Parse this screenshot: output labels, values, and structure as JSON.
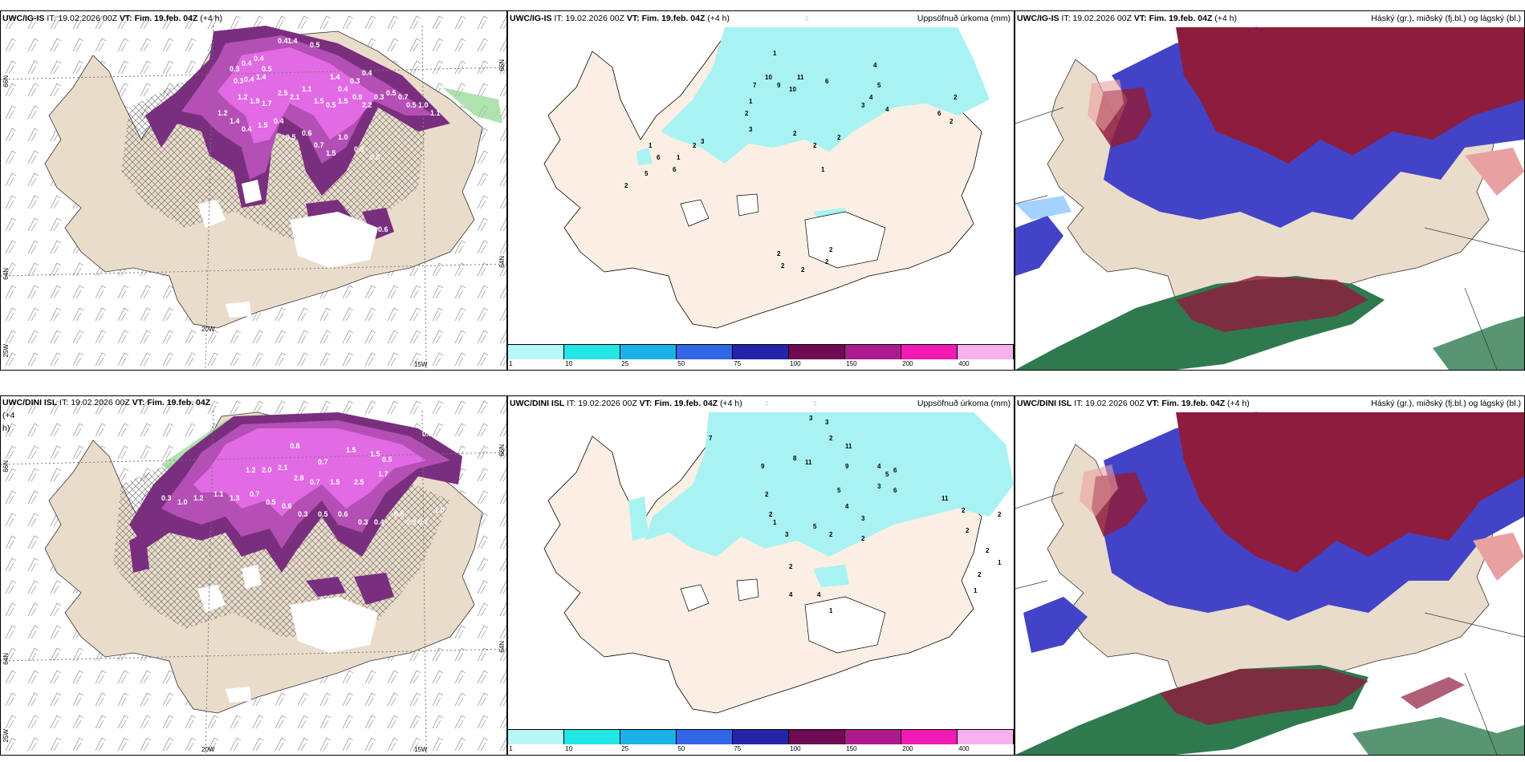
{
  "colors": {
    "land": "#eadccb",
    "land_pale": "#fbefe4",
    "sea": "#ffffff",
    "precip_dark": "#7a2f7e",
    "precip_mid": "#b44fb5",
    "precip_light": "#e26ae4",
    "precip_pink": "#f58af3",
    "accum_cyan": "#a8f2f2",
    "cloud_high": "#8e1c3c",
    "cloud_mid": "#4343c8",
    "cloud_low": "#2e7a4e",
    "cloud_pink": "#e8a0a0",
    "green_frame": "#8fd68f"
  },
  "panels": {
    "top_left": {
      "model": "UWC/IG-IS",
      "it_label": "IT:",
      "it_value": "19.02.2026 00Z",
      "vt_label": "VT:",
      "vt_value": "Fim. 19.feb. 04Z",
      "lead": "(+4 h)",
      "lat_66": "66N",
      "lat_64": "64N",
      "lon_25": "25W",
      "lon_15": "15W",
      "lon_20": "20W",
      "lat_66r": "66N",
      "lat_64r": "64N",
      "values": [
        "0.4",
        "1.4",
        "0.5",
        "0.3",
        "0.4",
        "0.4",
        "0.5",
        "0.3",
        "0.4",
        "1.4",
        "1.4",
        "0.4",
        "0.3",
        "0.4",
        "1.2",
        "1.9",
        "1.7",
        "2.5",
        "2.1",
        "1.1",
        "1.5",
        "0.5",
        "1.5",
        "0.9",
        "2.2",
        "0.3",
        "0.5",
        "0.7",
        "0.5",
        "1.0",
        "1.1",
        "1.2",
        "1.4",
        "0.4",
        "1.5",
        "0.4",
        "0.5",
        "0.6",
        "0.7",
        "1.5",
        "1.0",
        "0.5",
        "0.5",
        "0.3",
        "0.5",
        "0.7",
        "0.6"
      ]
    },
    "top_mid": {
      "model": "UWC/IG-IS",
      "it_label": "IT:",
      "it_value": "19.02.2026 00Z",
      "vt_label": "VT:",
      "vt_value": "Fim. 19.feb. 04Z",
      "lead": "(+4 h)",
      "title_right": "Uppsöfnuð úrkoma (mm)",
      "values": [
        "2",
        "1",
        "10",
        "7",
        "9",
        "10",
        "11",
        "6",
        "4",
        "5",
        "4",
        "3",
        "4",
        "2",
        "6",
        "2",
        "3",
        "1",
        "2",
        "1",
        "6",
        "5",
        "2",
        "6",
        "3",
        "2",
        "1",
        "2",
        "2",
        "2",
        "1",
        "2",
        "2",
        "2",
        "2",
        "2"
      ]
    },
    "top_right": {
      "model": "UWC/IG-IS",
      "it_label": "IT:",
      "it_value": "19.02.2026 00Z",
      "vt_label": "VT:",
      "vt_value": "Fim. 19.feb. 04Z",
      "lead": "(+4 h)",
      "title_right": "Háský (gr.), miðský (fj.bl.) og lágský (bl.)"
    },
    "bot_left": {
      "model": "UWC/DINI ISL",
      "it_label": "IT:",
      "it_value": "19.02.2026 00Z",
      "vt_label": "VT:",
      "vt_value": "Fim. 19.feb. 04Z",
      "lead_a": "(+4",
      "lead_b": "h)",
      "lat_66": "66N",
      "lat_64": "64N",
      "lon_25": "25W",
      "lon_15": "15W",
      "lon_20": "20W",
      "lat_66r": "66N",
      "lat_64r": "64N",
      "values": [
        "0.9",
        "0.5",
        "0.8",
        "1.5",
        "1.5",
        "0.5",
        "0.7",
        "1.2",
        "2.0",
        "2.1",
        "2.8",
        "0.7",
        "1.5",
        "2.5",
        "1.7",
        "0.3",
        "1.0",
        "1.2",
        "1.1",
        "1.3",
        "0.7",
        "0.5",
        "0.6",
        "0.3",
        "0.5",
        "0.6",
        "0.3",
        "0.4",
        "0.6",
        "0.3",
        "0.7",
        "1.0"
      ]
    },
    "bot_mid": {
      "model": "UWC/DINI ISL",
      "it_label": "IT:",
      "it_value": "19.02.2026 00Z",
      "vt_label": "VT:",
      "vt_value": "Fim. 19.feb. 04Z",
      "lead": "(+4 h)",
      "title_right": "Uppsöfnuð úrkoma (mm)",
      "values": [
        "2",
        "3",
        "3",
        "3",
        "2",
        "7",
        "9",
        "8",
        "11",
        "11",
        "9",
        "4",
        "5",
        "6",
        "6",
        "3",
        "5",
        "4",
        "2",
        "2",
        "1",
        "3",
        "5",
        "2",
        "3",
        "2",
        "2",
        "4",
        "4",
        "1",
        "11",
        "2",
        "2",
        "2",
        "2",
        "1",
        "2",
        "1"
      ]
    },
    "bot_right": {
      "model": "UWC/DINI ISL",
      "it_label": "IT:",
      "it_value": "19.02.2026 00Z",
      "vt_label": "VT:",
      "vt_value": "Fim. 19.feb. 04Z",
      "lead": "(+4 h)",
      "title_right": "Háský (gr.), miðský (fj.bl.) og lágský (bl.)"
    }
  },
  "colorbar": {
    "ticks": [
      "1",
      "10",
      "25",
      "50",
      "75",
      "100",
      "150",
      "200",
      "400"
    ],
    "colors": [
      "#b8f7f7",
      "#22e6e6",
      "#1ab2e6",
      "#3366e6",
      "#2424a8",
      "#6e0b52",
      "#ad1a8e",
      "#f01ab4",
      "#f5b0ee"
    ]
  }
}
